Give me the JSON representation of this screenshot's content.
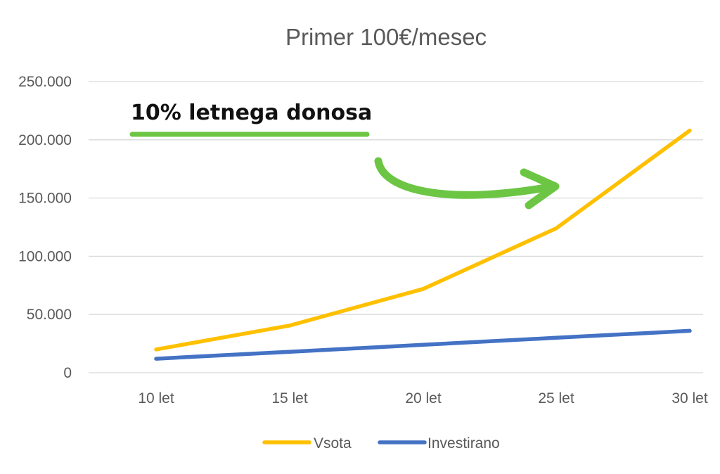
{
  "chart_data": {
    "type": "line",
    "title": "Primer 100€/mesec",
    "categories": [
      "10 let",
      "15 let",
      "20 let",
      "25 let",
      "30 let"
    ],
    "series": [
      {
        "name": "Vsota",
        "values": [
          20000,
          40500,
          72000,
          124000,
          208000
        ],
        "color": "#FFC000"
      },
      {
        "name": "Investirano",
        "values": [
          12000,
          18000,
          24000,
          30000,
          36000
        ],
        "color": "#4472C4"
      }
    ],
    "y_ticks": [
      "0",
      "50.000",
      "100.000",
      "150.000",
      "200.000",
      "250.000"
    ],
    "ylim": [
      0,
      250000
    ],
    "grid": true,
    "legend_position": "bottom",
    "annotation": {
      "text": "10% letnega donosa",
      "underline_color": "#6CC644",
      "arrow_color": "#6CC644"
    }
  }
}
